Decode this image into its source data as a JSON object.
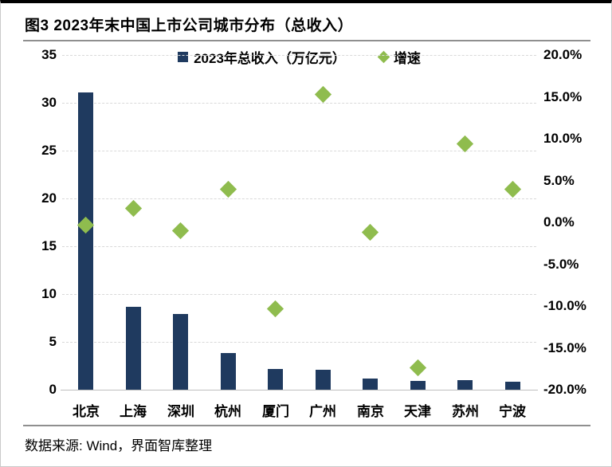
{
  "figure": {
    "title": "图3 2023年末中国上市公司城市分布（总收入）",
    "source": "数据来源: Wind，界面智库整理"
  },
  "colors": {
    "bar": "#1F3A5F",
    "diamond": "#8FBC4E",
    "gridline": "#d9d9d9",
    "axis_line": "#bfbfbf",
    "text": "#000000"
  },
  "chart_data": {
    "type": "bar",
    "subtype": "combo-bar-with-scatter-diamonds",
    "title": "图3 2023年末中国上市公司城市分布（总收入）",
    "categories": [
      "北京",
      "上海",
      "深圳",
      "杭州",
      "厦门",
      "广州",
      "南京",
      "天津",
      "苏州",
      "宁波"
    ],
    "series": [
      {
        "name": "2023年总收入（万亿元）",
        "type": "bar",
        "axis": "left",
        "color": "#1F3A5F",
        "values": [
          31.1,
          8.65,
          7.9,
          3.8,
          2.2,
          2.05,
          1.2,
          0.9,
          1.0,
          0.85
        ]
      },
      {
        "name": "增速",
        "type": "scatter",
        "marker": "diamond",
        "axis": "right",
        "color": "#8FBC4E",
        "values": [
          -0.3,
          1.7,
          -1.0,
          4.0,
          -10.3,
          15.3,
          -1.2,
          -17.4,
          9.4,
          4.0
        ]
      }
    ],
    "left_axis": {
      "min": 0,
      "max": 35,
      "step": 5,
      "ticks": [
        "35",
        "30",
        "25",
        "20",
        "15",
        "10",
        "5",
        "0"
      ]
    },
    "right_axis": {
      "min": -20,
      "max": 20,
      "step": 5,
      "unit": "%",
      "ticks": [
        "20.0%",
        "15.0%",
        "10.0%",
        "5.0%",
        "0.0%",
        "-5.0%",
        "-10.0%",
        "-15.0%",
        "-20.0%"
      ]
    },
    "legend_position": "top-center",
    "grid": "horizontal-dashed"
  }
}
